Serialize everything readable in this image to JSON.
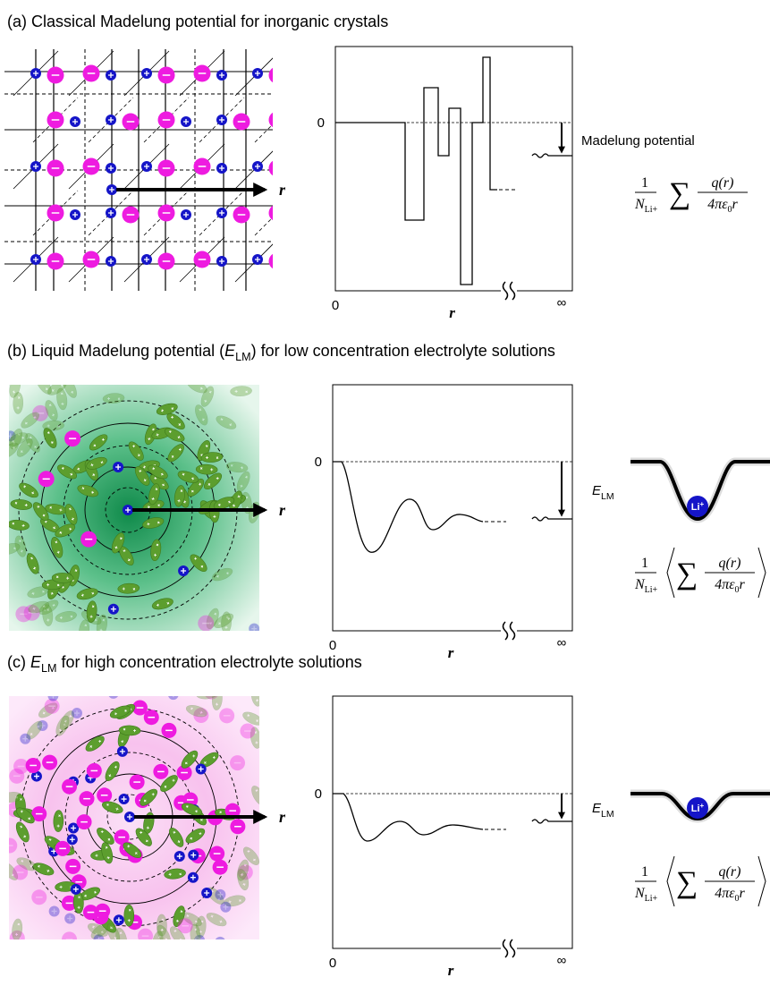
{
  "panels": [
    {
      "title": {
        "before": "(a) Classical Madelung potential for inorganic crystals"
      },
      "zero": "0",
      "origin": "0",
      "r_axis": "r",
      "infinity": "∞",
      "arrow_r": "r",
      "potential_label": {
        "before": "Madelung potential"
      },
      "formula": {
        "numerator": "1",
        "N": "N",
        "N_sub": "Li+",
        "sum": "∑",
        "q": "q(r)",
        "denominator": "4πε",
        "eps_sub": "0",
        "r": "r"
      }
    },
    {
      "title": {
        "before": "(b) Liquid Madelung potential (",
        "symbol": "E",
        "subscript": "LM",
        "after": ") for low concentration electrolyte solutions"
      },
      "zero": "0",
      "origin": "0",
      "r_axis": "r",
      "infinity": "∞",
      "arrow_r": "r",
      "potential_label": {
        "symbol": "E",
        "subscript": "LM"
      },
      "ion": {
        "symbol": "Li",
        "charge": "+"
      },
      "formula": {
        "numerator": "1",
        "N": "N",
        "N_sub": "Li+",
        "sum": "∑",
        "q": "q(r)",
        "denominator": "4πε",
        "eps_sub": "0",
        "r": "r"
      }
    },
    {
      "title": {
        "before": "(c) ",
        "symbol": "E",
        "subscript": "LM",
        "after": " for high concentration electrolyte solutions"
      },
      "zero": "0",
      "origin": "0",
      "r_axis": "r",
      "infinity": "∞",
      "arrow_r": "r",
      "potential_label": {
        "symbol": "E",
        "subscript": "LM"
      },
      "ion": {
        "symbol": "Li",
        "charge": "+"
      },
      "formula": {
        "numerator": "1",
        "N": "N",
        "N_sub": "Li+",
        "sum": "∑",
        "q": "q(r)",
        "denominator": "4πε",
        "eps_sub": "0",
        "r": "r"
      }
    }
  ]
}
